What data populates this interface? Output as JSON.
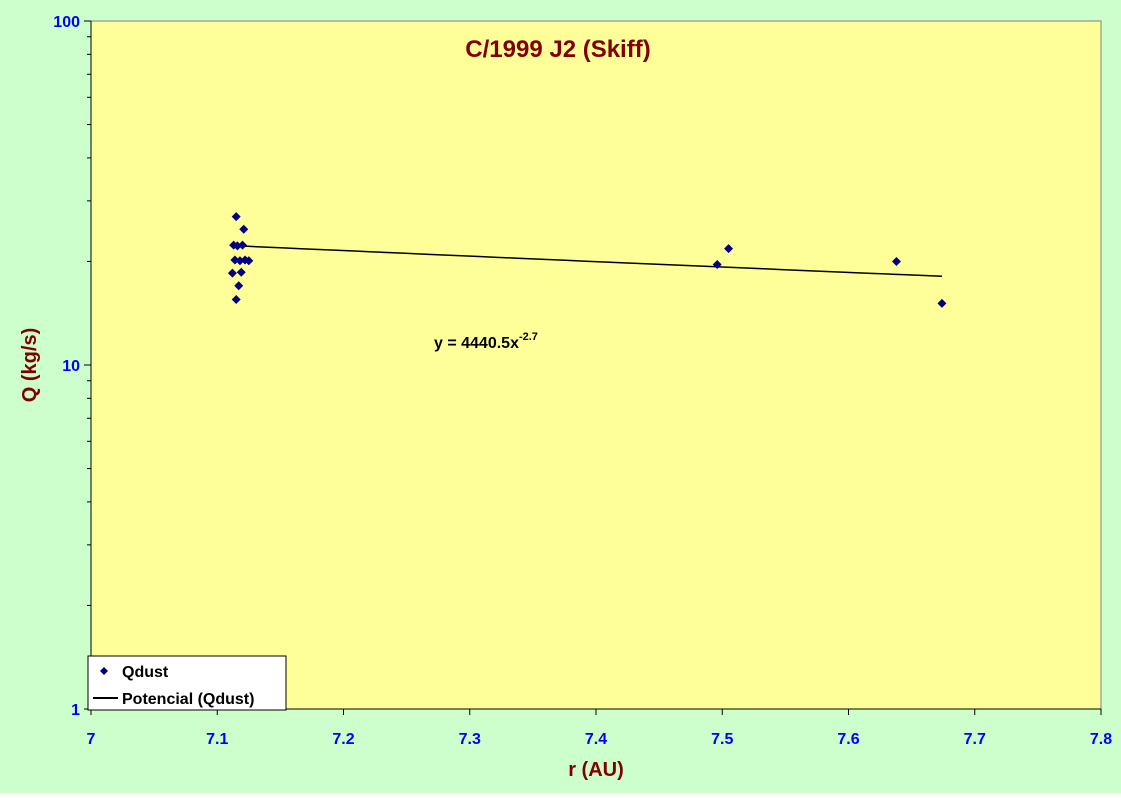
{
  "colors": {
    "outer_bg": "#ccffcc",
    "plot_bg": "#ffff99",
    "title": "#800000",
    "axis_label": "#800000",
    "tick_label": "#0000ff",
    "marker": "#000080",
    "trendline": "#000000"
  },
  "chart_data": {
    "type": "scatter",
    "title": "C/1999 J2 (Skiff)",
    "xlabel": "r (AU)",
    "ylabel": "Q (kg/s)",
    "xlim": [
      7,
      7.8
    ],
    "ylim": [
      1,
      100
    ],
    "y_scale": "log",
    "x_ticks": [
      "7",
      "7.1",
      "7.2",
      "7.3",
      "7.4",
      "7.5",
      "7.6",
      "7.7",
      "7.8"
    ],
    "y_ticks": [
      "1",
      "10",
      "100"
    ],
    "grid": false,
    "legend_position": "bottom-left",
    "series": [
      {
        "name": "Qdust",
        "marker": "diamond-icon",
        "points": [
          [
            7.112,
            18.5
          ],
          [
            7.113,
            22.3
          ],
          [
            7.114,
            20.2
          ],
          [
            7.115,
            27.0
          ],
          [
            7.115,
            15.5
          ],
          [
            7.116,
            22.2
          ],
          [
            7.117,
            17.0
          ],
          [
            7.118,
            20.1
          ],
          [
            7.119,
            18.6
          ],
          [
            7.12,
            22.3
          ],
          [
            7.121,
            24.8
          ],
          [
            7.122,
            20.2
          ],
          [
            7.125,
            20.1
          ],
          [
            7.496,
            19.6
          ],
          [
            7.505,
            21.8
          ],
          [
            7.638,
            20.0
          ],
          [
            7.674,
            15.1
          ]
        ]
      }
    ],
    "trendline": {
      "name": "Potencial (Qdust)",
      "kind": "power",
      "coefficient": 4440.5,
      "exponent": -2.7,
      "x_range": [
        7.11,
        7.674
      ],
      "equation_base": "y = 4440.5x",
      "equation_exponent": "-2.7"
    }
  }
}
